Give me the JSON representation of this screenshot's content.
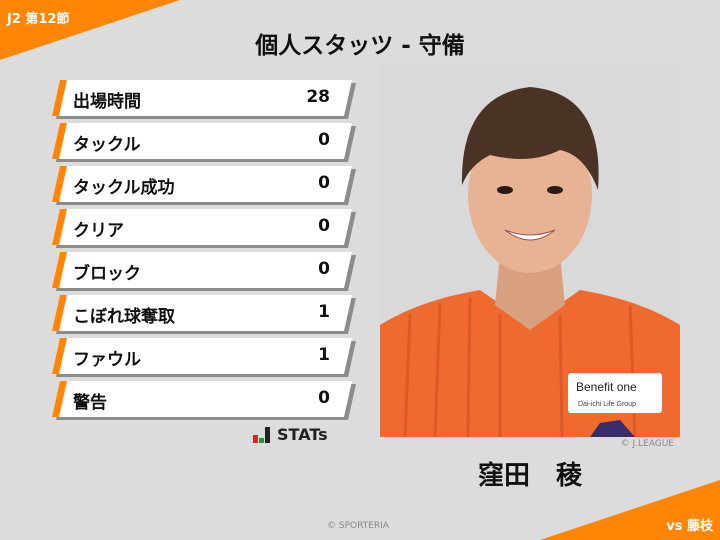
{
  "header": {
    "round": "J2 第12節",
    "title": "個人スタッツ - 守備"
  },
  "stats": [
    {
      "label": "出場時間",
      "value": "28"
    },
    {
      "label": "タックル",
      "value": "0"
    },
    {
      "label": "タックル成功",
      "value": "0"
    },
    {
      "label": "クリア",
      "value": "0"
    },
    {
      "label": "ブロック",
      "value": "0"
    },
    {
      "label": "こぼれ球奪取",
      "value": "1"
    },
    {
      "label": "ファウル",
      "value": "1"
    },
    {
      "label": "警告",
      "value": "0"
    }
  ],
  "stats_logo": "STATs",
  "player": {
    "name": "窪田　稜",
    "photo_credit": "© J.LEAGUE",
    "sponsor": "Benefit one",
    "sponsor_sub": "Dai-ichi Life Group"
  },
  "footer": {
    "opponent": "vs 藤枝",
    "copyright": "© SPORTERIA"
  },
  "colors": {
    "accent": "#ff8505",
    "background": "#dcdcdc"
  }
}
